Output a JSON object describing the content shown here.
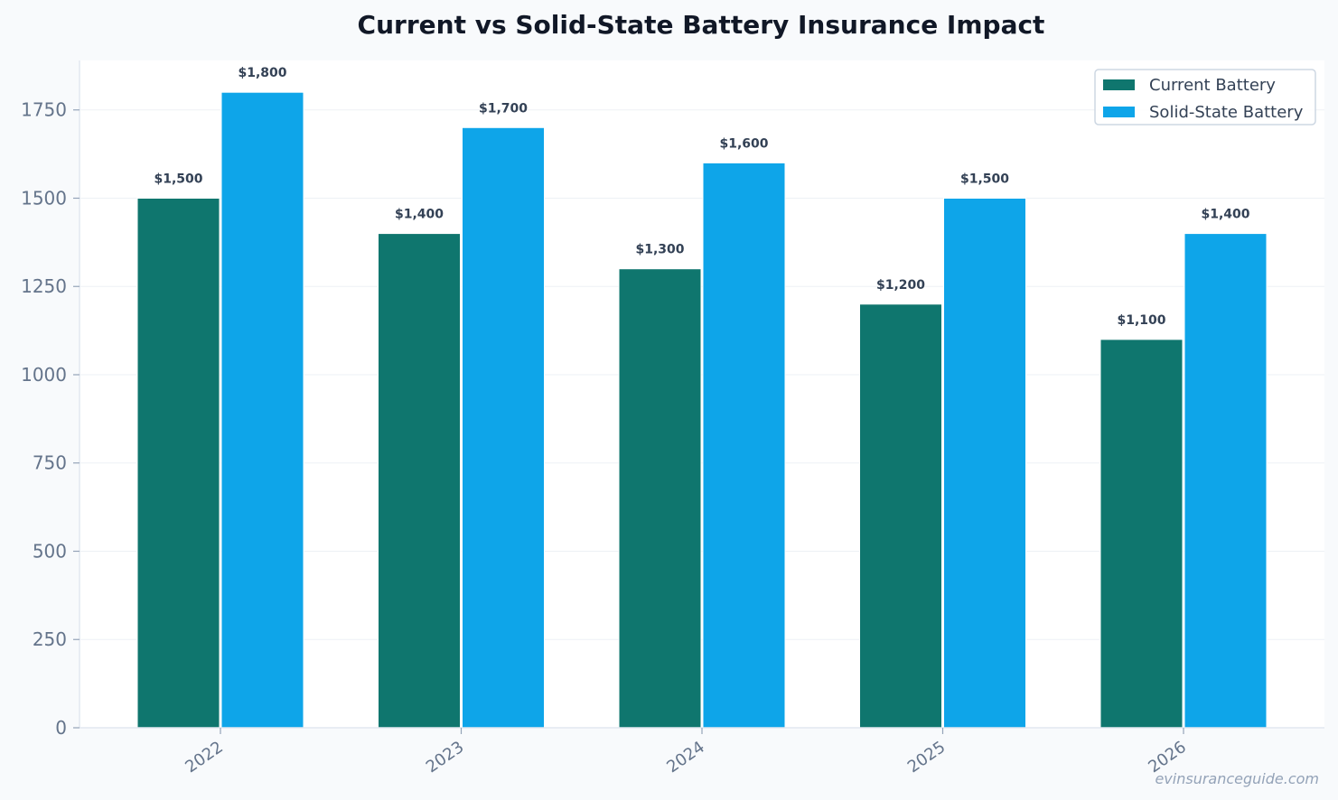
{
  "chart_data": {
    "type": "bar",
    "title": "Current vs Solid-State Battery Insurance Impact",
    "xlabel": "",
    "ylabel": "",
    "categories": [
      "2022",
      "2023",
      "2024",
      "2025",
      "2026"
    ],
    "series": [
      {
        "name": "Current Battery",
        "color": "#0f766e",
        "values": [
          1500,
          1400,
          1300,
          1200,
          1100
        ],
        "labels": [
          "$1,500",
          "$1,400",
          "$1,300",
          "$1,200",
          "$1,100"
        ]
      },
      {
        "name": "Solid-State Battery",
        "color": "#0ea5e9",
        "values": [
          1800,
          1700,
          1600,
          1500,
          1400
        ],
        "labels": [
          "$1,800",
          "$1,700",
          "$1,600",
          "$1,500",
          "$1,400"
        ]
      }
    ],
    "ylim": [
      0,
      1890
    ],
    "yticks": [
      0,
      250,
      500,
      750,
      1000,
      1250,
      1500,
      1750
    ],
    "grid": true,
    "legend_position": "top-right",
    "watermark": "evinsuranceguide.com"
  }
}
